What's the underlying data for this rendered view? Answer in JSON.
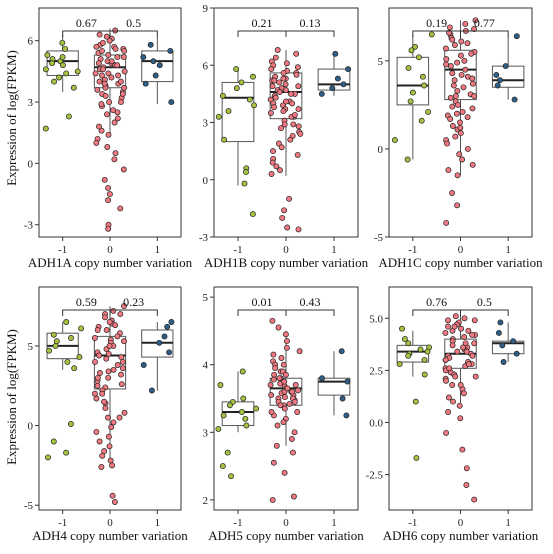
{
  "figure": {
    "ylabel": "Expression of log(FPKM)"
  },
  "colors": {
    "minus1": "#a3c241",
    "zero": "#f07880",
    "plus1": "#2f5e88",
    "box_edge": "#555555",
    "panel_edge": "#333333"
  },
  "chart_data": [
    {
      "type": "box",
      "id": "ADH1A",
      "xlabel": "ADH1A copy number variation",
      "categories": [
        "-1",
        "0",
        "1"
      ],
      "ylim": [
        -3.6,
        7.6
      ],
      "yticks": [
        -3,
        0,
        3,
        6
      ],
      "boxes": [
        {
          "q1": 4.3,
          "median": 5.0,
          "q3": 5.5,
          "whislo": 3.5,
          "whishi": 6.3
        },
        {
          "q1": 3.7,
          "median": 4.7,
          "q3": 5.3,
          "whislo": 1.4,
          "whishi": 6.6
        },
        {
          "q1": 4.0,
          "median": 5.0,
          "q3": 5.5,
          "whislo": 2.9,
          "whishi": 6.2
        }
      ],
      "points": [
        [
          5.9,
          5.6,
          5.3,
          5.1,
          5.0,
          4.8,
          4.6,
          4.5,
          4.4,
          4.2,
          4.0,
          3.7,
          2.3,
          1.7,
          5.2,
          4.9
        ],
        [
          6.5,
          6.3,
          6.1,
          6.0,
          5.8,
          5.7,
          5.6,
          5.5,
          5.4,
          5.3,
          5.2,
          5.1,
          5.0,
          4.9,
          4.8,
          4.7,
          4.6,
          4.5,
          4.4,
          4.3,
          4.2,
          4.1,
          4.0,
          3.9,
          3.8,
          3.7,
          3.6,
          3.5,
          3.4,
          3.2,
          3.0,
          2.8,
          2.6,
          2.4,
          2.2,
          2.0,
          1.8,
          1.6,
          1.4,
          1.2,
          1.0,
          0.8,
          0.5,
          0.2,
          -0.3,
          -0.8,
          -1.2,
          -1.5,
          -1.8,
          -2.2,
          -3.0,
          -3.2,
          5.9,
          5.5,
          5.2,
          4.9,
          4.6,
          4.3,
          4.0,
          3.7,
          3.4,
          3.0,
          2.5,
          5.7,
          5.0,
          4.4,
          3.9,
          3.3,
          2.9,
          6.2,
          5.6,
          4.8
        ],
        [
          5.8,
          5.5,
          5.2,
          5.0,
          4.8,
          4.3,
          3.9,
          3.0
        ]
      ],
      "comparisons": [
        {
          "from": 0,
          "to": 1,
          "p": "0.67"
        },
        {
          "from": 1,
          "to": 2,
          "p": "0.5"
        }
      ]
    },
    {
      "type": "box",
      "id": "ADH1B",
      "xlabel": "ADH1B copy number variation",
      "categories": [
        "-1",
        "0",
        "1"
      ],
      "ylim": [
        -3.0,
        9.0
      ],
      "yticks": [
        -3,
        0,
        3,
        6,
        9
      ],
      "boxes": [
        {
          "q1": 2.0,
          "median": 4.3,
          "q3": 5.1,
          "whislo": -0.3,
          "whishi": 5.9
        },
        {
          "q1": 3.2,
          "median": 4.6,
          "q3": 5.6,
          "whislo": 0.2,
          "whishi": 6.8
        },
        {
          "q1": 4.7,
          "median": 5.0,
          "q3": 5.8,
          "whislo": 4.4,
          "whishi": 6.6
        }
      ],
      "points": [
        [
          5.8,
          5.4,
          5.1,
          4.8,
          4.4,
          4.2,
          3.9,
          3.6,
          3.3,
          2.1,
          0.6,
          0.4,
          -0.2,
          -1.8
        ],
        [
          6.8,
          6.6,
          6.4,
          6.2,
          6.0,
          5.8,
          5.7,
          5.6,
          5.5,
          5.4,
          5.3,
          5.2,
          5.1,
          5.0,
          4.9,
          4.8,
          4.7,
          4.6,
          4.5,
          4.4,
          4.3,
          4.2,
          4.1,
          4.0,
          3.9,
          3.8,
          3.7,
          3.6,
          3.5,
          3.3,
          3.1,
          2.9,
          2.7,
          2.5,
          2.3,
          2.1,
          1.9,
          1.7,
          1.5,
          1.3,
          1.1,
          0.9,
          0.7,
          0.5,
          0.3,
          -1.0,
          -1.6,
          -2.0,
          -2.5,
          -2.6,
          6.1,
          5.6,
          5.2,
          4.9,
          4.5,
          4.1,
          3.7,
          3.3,
          2.9,
          2.4,
          5.9,
          5.3,
          4.7,
          4.0,
          3.4,
          2.8
        ],
        [
          6.6,
          5.8,
          5.3,
          5.0,
          4.8,
          4.5
        ]
      ],
      "comparisons": [
        {
          "from": 0,
          "to": 1,
          "p": "0.21"
        },
        {
          "from": 1,
          "to": 2,
          "p": "0.13"
        }
      ]
    },
    {
      "type": "box",
      "id": "ADH1C",
      "xlabel": "ADH1C copy number variation",
      "categories": [
        "-1",
        "0",
        "1"
      ],
      "ylim": [
        -5.0,
        8.0
      ],
      "yticks": [
        -5,
        0,
        5
      ],
      "boxes": [
        {
          "q1": 2.5,
          "median": 3.6,
          "q3": 5.2,
          "whislo": -0.6,
          "whishi": 6.5
        },
        {
          "q1": 2.8,
          "median": 4.5,
          "q3": 5.6,
          "whislo": -1.5,
          "whishi": 7.3
        },
        {
          "q1": 3.5,
          "median": 3.9,
          "q3": 4.7,
          "whislo": 2.8,
          "whishi": 6.4
        }
      ],
      "points": [
        [
          6.5,
          5.8,
          5.2,
          4.6,
          4.1,
          3.6,
          3.2,
          2.7,
          2.1,
          1.6,
          0.5,
          -0.6,
          5.6
        ],
        [
          7.3,
          7.1,
          6.9,
          6.7,
          6.5,
          6.3,
          6.1,
          5.9,
          5.7,
          5.5,
          5.3,
          5.1,
          4.9,
          4.7,
          4.5,
          4.3,
          4.1,
          3.9,
          3.7,
          3.5,
          3.3,
          3.1,
          2.9,
          2.7,
          2.5,
          2.3,
          2.1,
          1.9,
          1.7,
          1.5,
          1.3,
          1.1,
          0.9,
          0.7,
          0.5,
          0.3,
          0.0,
          -0.3,
          -0.6,
          -0.9,
          -1.2,
          -1.5,
          -2.5,
          -3.2,
          -4.2,
          6.6,
          6.0,
          5.4,
          4.8,
          4.2,
          3.6,
          3.0,
          2.4,
          1.8,
          1.2,
          6.2,
          5.0,
          4.0,
          3.0,
          2.0,
          6.8
        ],
        [
          6.4,
          4.7,
          4.2,
          3.9,
          3.6,
          2.8
        ]
      ],
      "comparisons": [
        {
          "from": 0,
          "to": 1,
          "p": "0.19"
        },
        {
          "from": 1,
          "to": 2,
          "p": "0.77"
        }
      ]
    },
    {
      "type": "box",
      "id": "ADH4",
      "xlabel": "ADH4 copy number variation",
      "categories": [
        "-1",
        "0",
        "1"
      ],
      "ylim": [
        -5.3,
        8.7
      ],
      "yticks": [
        -5,
        0,
        5
      ],
      "boxes": [
        {
          "q1": 4.2,
          "median": 5.0,
          "q3": 5.8,
          "whislo": 3.5,
          "whishi": 6.5
        },
        {
          "q1": 2.3,
          "median": 4.4,
          "q3": 5.6,
          "whislo": -2.6,
          "whishi": 7.5
        },
        {
          "q1": 4.3,
          "median": 5.2,
          "q3": 6.0,
          "whislo": 2.2,
          "whishi": 6.5
        }
      ],
      "points": [
        [
          6.5,
          6.1,
          5.7,
          5.3,
          5.0,
          4.7,
          4.3,
          4.0,
          3.6,
          0.1,
          -1.0,
          -1.7,
          -2.0,
          5.5
        ],
        [
          7.5,
          7.2,
          7.0,
          6.8,
          6.6,
          6.4,
          6.2,
          6.0,
          5.8,
          5.6,
          5.4,
          5.2,
          5.0,
          4.8,
          4.6,
          4.4,
          4.2,
          4.0,
          3.8,
          3.6,
          3.4,
          3.2,
          3.0,
          2.8,
          2.6,
          2.4,
          2.2,
          2.0,
          1.7,
          1.4,
          1.1,
          0.8,
          0.5,
          0.2,
          -0.1,
          -0.4,
          -0.7,
          -1.0,
          -1.3,
          -1.6,
          -1.9,
          -2.2,
          -2.5,
          -2.6,
          -4.4,
          -4.8,
          6.5,
          6.0,
          5.5,
          5.0,
          4.5,
          4.0,
          3.5,
          3.0,
          2.5,
          1.5,
          0.5,
          6.3,
          5.3,
          4.3,
          3.3,
          2.0,
          7.0
        ],
        [
          6.5,
          6.2,
          5.6,
          5.2,
          4.6,
          3.8,
          2.2
        ]
      ],
      "comparisons": [
        {
          "from": 0,
          "to": 1,
          "p": "0.59"
        },
        {
          "from": 1,
          "to": 2,
          "p": "0.23"
        }
      ]
    },
    {
      "type": "box",
      "id": "ADH5",
      "xlabel": "ADH5 copy number variation",
      "categories": [
        "-1",
        "0",
        "1"
      ],
      "ylim": [
        1.85,
        5.15
      ],
      "yticks": [
        2,
        3,
        4,
        5
      ],
      "boxes": [
        {
          "q1": 3.1,
          "median": 3.3,
          "q3": 3.45,
          "whislo": 3.0,
          "whishi": 3.9
        },
        {
          "q1": 3.4,
          "median": 3.65,
          "q3": 3.8,
          "whislo": 2.8,
          "whishi": 4.5
        },
        {
          "q1": 3.55,
          "median": 3.75,
          "q3": 3.8,
          "whislo": 3.25,
          "whishi": 4.2
        }
      ],
      "points": [
        [
          3.9,
          3.7,
          3.5,
          3.45,
          3.4,
          3.35,
          3.3,
          3.25,
          3.2,
          3.1,
          3.05,
          2.7,
          2.5,
          2.35
        ],
        [
          4.65,
          4.55,
          4.45,
          4.35,
          4.25,
          4.2,
          4.15,
          4.1,
          4.05,
          4.0,
          3.95,
          3.9,
          3.85,
          3.8,
          3.78,
          3.75,
          3.72,
          3.7,
          3.68,
          3.65,
          3.62,
          3.6,
          3.58,
          3.55,
          3.52,
          3.5,
          3.48,
          3.45,
          3.42,
          3.4,
          3.35,
          3.3,
          3.25,
          3.2,
          3.15,
          3.1,
          3.0,
          2.9,
          2.8,
          2.7,
          2.55,
          2.4,
          2.05,
          2.0,
          3.9,
          3.8,
          3.7,
          3.6,
          3.5,
          3.4,
          3.3,
          3.85,
          3.75,
          3.65,
          3.55,
          3.45,
          4.0,
          3.6
        ],
        [
          4.2,
          3.8,
          3.75,
          3.5,
          3.25
        ]
      ],
      "comparisons": [
        {
          "from": 0,
          "to": 1,
          "p": "0.01"
        },
        {
          "from": 1,
          "to": 2,
          "p": "0.43"
        }
      ]
    },
    {
      "type": "box",
      "id": "ADH6",
      "xlabel": "ADH6 copy number variation",
      "categories": [
        "-1",
        "0",
        "1"
      ],
      "ylim": [
        -4.2,
        6.5
      ],
      "yticks": [
        -2.5,
        0.0,
        2.5,
        5.0
      ],
      "ytick_labels": [
        "-2.5",
        "0.0",
        "2.5",
        "5.0"
      ],
      "boxes": [
        {
          "q1": 2.9,
          "median": 3.4,
          "q3": 3.7,
          "whislo": 2.2,
          "whishi": 4.4
        },
        {
          "q1": 2.6,
          "median": 3.3,
          "q3": 4.0,
          "whislo": 0.8,
          "whishi": 5.1
        },
        {
          "q1": 3.3,
          "median": 3.8,
          "q3": 3.9,
          "whislo": 2.9,
          "whishi": 4.8
        }
      ],
      "points": [
        [
          4.5,
          4.0,
          3.8,
          3.6,
          3.5,
          3.4,
          3.3,
          3.2,
          3.0,
          2.8,
          2.3,
          1.0,
          -1.7
        ],
        [
          5.1,
          5.0,
          4.9,
          4.8,
          4.7,
          4.6,
          4.5,
          4.4,
          4.3,
          4.2,
          4.1,
          4.0,
          3.9,
          3.8,
          3.7,
          3.6,
          3.5,
          3.4,
          3.3,
          3.2,
          3.1,
          3.0,
          2.9,
          2.8,
          2.7,
          2.6,
          2.5,
          2.4,
          2.3,
          2.2,
          2.1,
          2.0,
          1.8,
          1.6,
          1.4,
          1.2,
          1.0,
          0.8,
          0.5,
          0.2,
          -0.5,
          -1.3,
          -2.2,
          -3.0,
          -3.7,
          4.6,
          4.2,
          3.8,
          3.4,
          3.0,
          2.6,
          2.2,
          1.8,
          4.4,
          3.6,
          2.8,
          4.9,
          3.2
        ],
        [
          4.8,
          4.3,
          3.9,
          3.7,
          3.3,
          2.9
        ]
      ],
      "comparisons": [
        {
          "from": 0,
          "to": 1,
          "p": "0.76"
        },
        {
          "from": 1,
          "to": 2,
          "p": "0.5"
        }
      ]
    }
  ]
}
